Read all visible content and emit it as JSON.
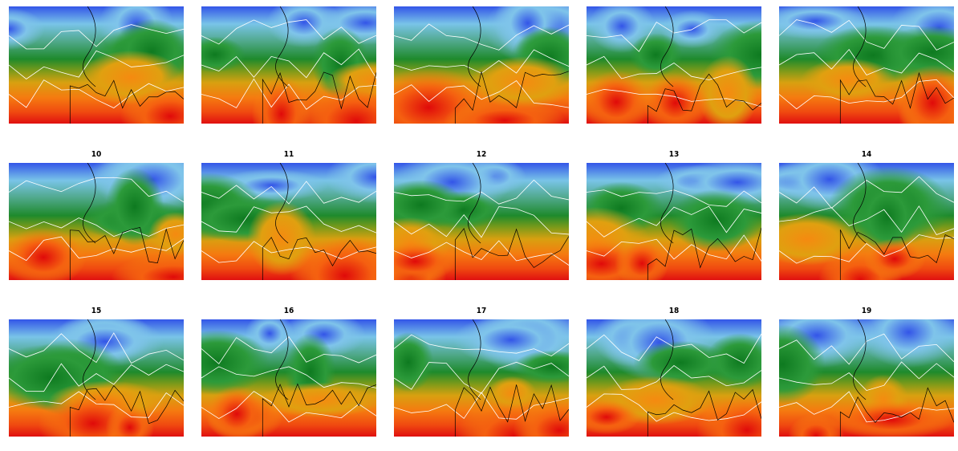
{
  "panel_labels": [
    "10",
    "11",
    "12",
    "13",
    "14",
    "15",
    "16",
    "17",
    "18",
    "19"
  ]
}
